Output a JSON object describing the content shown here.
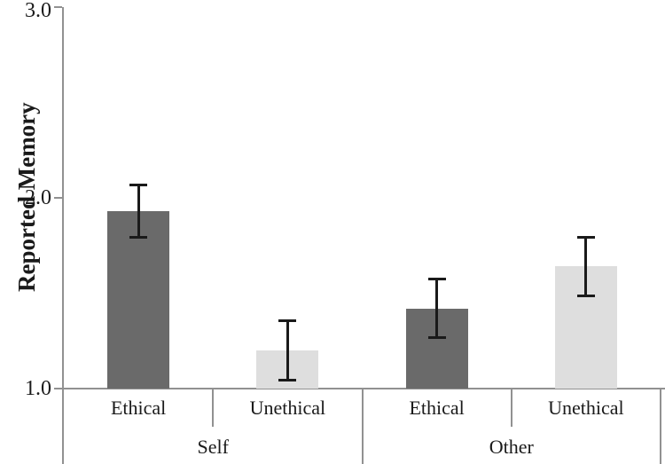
{
  "chart_data": {
    "type": "bar",
    "ylabel": "Reported Memory",
    "ylim": [
      1.0,
      3.0
    ],
    "yticks": [
      3.0,
      2.0,
      1.0
    ],
    "ytick_labels": [
      "3.0",
      "2.0",
      "1.0"
    ],
    "legend": "none",
    "grid": "off",
    "groups": [
      {
        "label": "Self",
        "bars": [
          {
            "label": "Ethical",
            "value": 1.93,
            "error": 0.14,
            "color": "#6a6a6a"
          },
          {
            "label": "Unethical",
            "value": 1.2,
            "error": 0.16,
            "color": "#dedede"
          }
        ]
      },
      {
        "label": "Other",
        "bars": [
          {
            "label": "Ethical",
            "value": 1.42,
            "error": 0.155,
            "color": "#6a6a6a"
          },
          {
            "label": "Unethical",
            "value": 1.64,
            "error": 0.155,
            "color": "#dedede"
          }
        ]
      }
    ],
    "colors": {
      "dark_bar": "#6a6a6a",
      "light_bar": "#dedede",
      "axis_line": "#919191",
      "error_bar": "#1a1a1a",
      "text": "#1a1a1a"
    }
  }
}
